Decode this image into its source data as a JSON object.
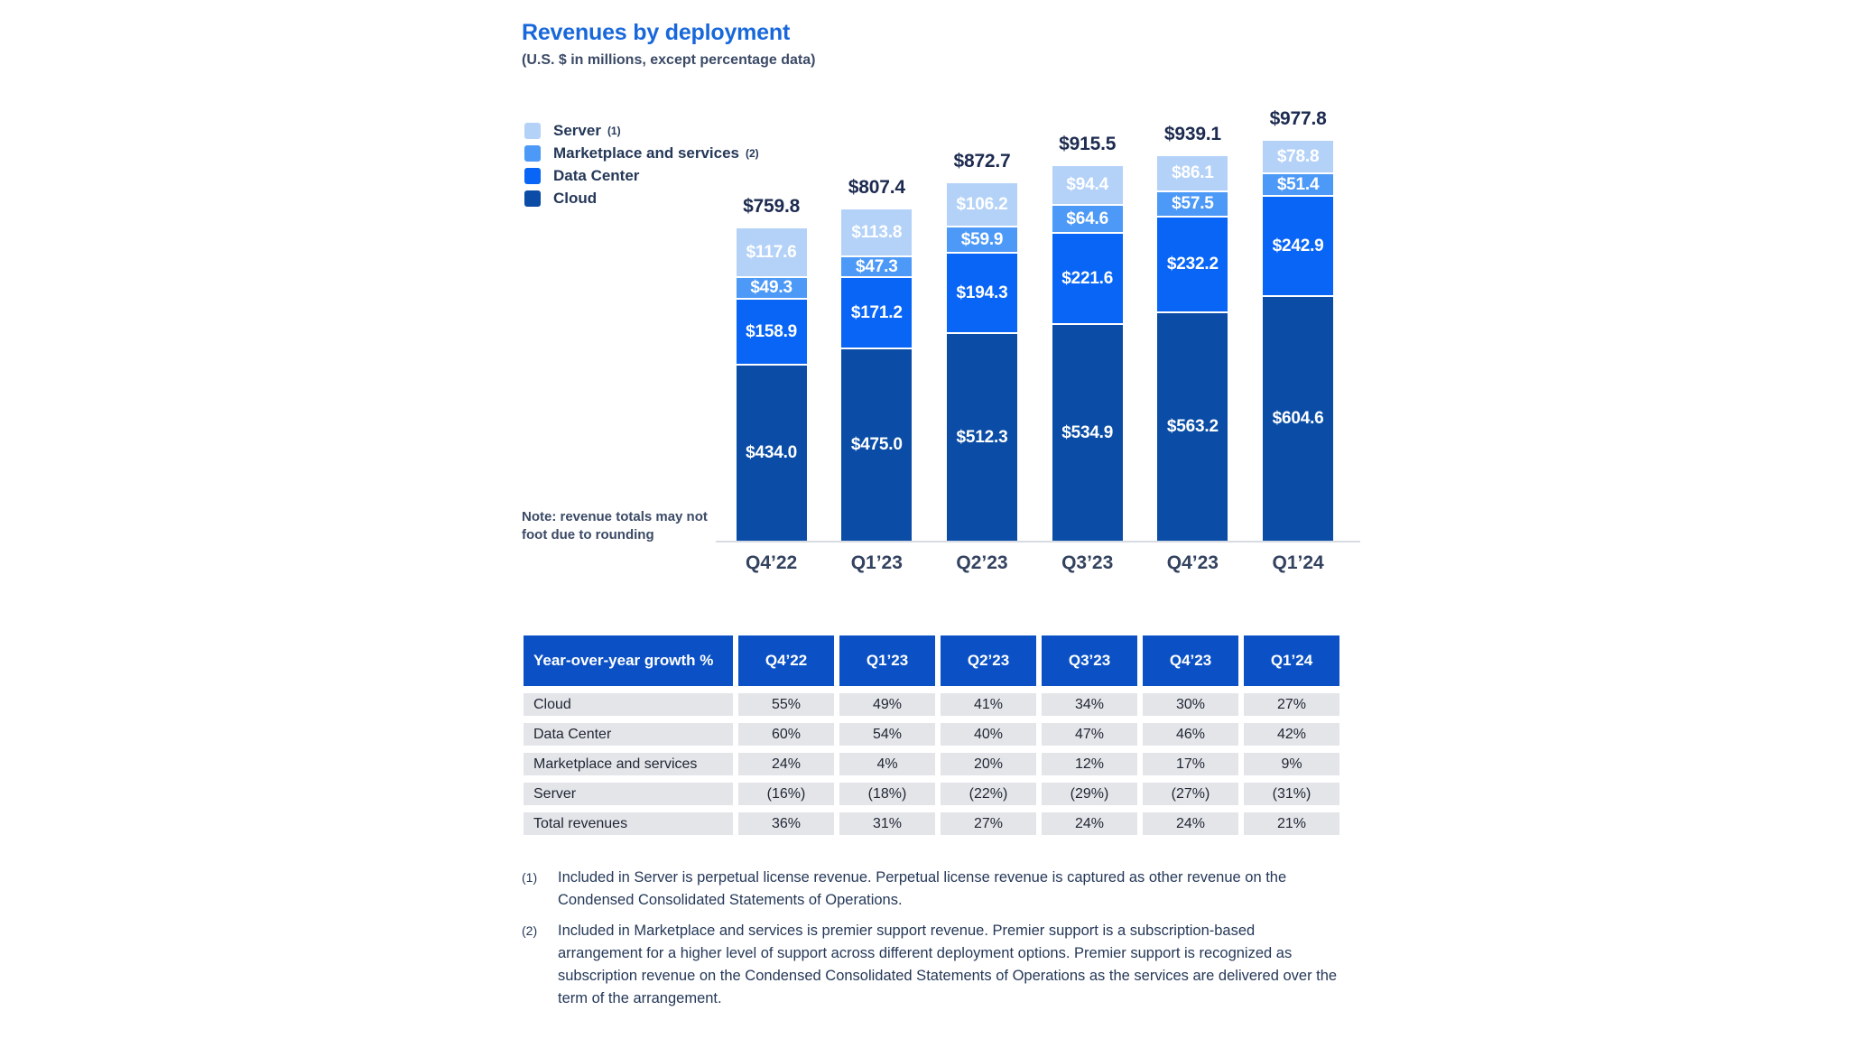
{
  "header": {
    "title": "Revenues by deployment",
    "subtitle": "(U.S. $ in millions, except percentage data)"
  },
  "colors": {
    "title_accent": "#1868DB",
    "server": "#B4D2F8",
    "marketplace": "#4D99F7",
    "data_center": "#0865F6",
    "cloud": "#0B4DA6",
    "table_header": "#0B51C5",
    "table_row_bg": "#E4E5E9",
    "axis_line": "#D8DBE1"
  },
  "legend": [
    {
      "label": "Server",
      "ref": "(1)",
      "color": "#B4D2F8"
    },
    {
      "label": "Marketplace and services",
      "ref": "(2)",
      "color": "#4D99F7"
    },
    {
      "label": "Data Center",
      "ref": "",
      "color": "#0865F6"
    },
    {
      "label": "Cloud",
      "ref": "",
      "color": "#0B4DA6"
    }
  ],
  "chart_data": {
    "type": "bar",
    "stacked": true,
    "title": "Revenues by deployment",
    "subtitle": "(U.S. $ in millions, except percentage data)",
    "unit_prefix": "$",
    "categories": [
      "Q4’22",
      "Q1’23",
      "Q2’23",
      "Q3’23",
      "Q4’23",
      "Q1’24"
    ],
    "series": [
      {
        "name": "Cloud",
        "color": "#0B4DA6",
        "values": [
          434.0,
          475.0,
          512.3,
          534.9,
          563.2,
          604.6
        ]
      },
      {
        "name": "Data Center",
        "color": "#0865F6",
        "values": [
          158.9,
          171.2,
          194.3,
          221.6,
          232.2,
          242.9
        ]
      },
      {
        "name": "Marketplace and services",
        "color": "#4D99F7",
        "values": [
          49.3,
          47.3,
          59.9,
          64.6,
          57.5,
          51.4
        ]
      },
      {
        "name": "Server",
        "color": "#B4D2F8",
        "values": [
          117.6,
          113.8,
          106.2,
          94.4,
          86.1,
          78.8
        ]
      }
    ],
    "totals": [
      759.8,
      807.4,
      872.7,
      915.5,
      939.1,
      977.8
    ],
    "note": "Note: revenue totals may not foot due to rounding",
    "legend_position": "top-left",
    "grid": false
  },
  "growth_table": {
    "header": [
      "Year-over-year growth %",
      "Q4’22",
      "Q1’23",
      "Q2’23",
      "Q3’23",
      "Q4’23",
      "Q1’24"
    ],
    "rows": [
      {
        "label": "Cloud",
        "values": [
          "55%",
          "49%",
          "41%",
          "34%",
          "30%",
          "27%"
        ]
      },
      {
        "label": "Data Center",
        "values": [
          "60%",
          "54%",
          "40%",
          "47%",
          "46%",
          "42%"
        ]
      },
      {
        "label": "Marketplace and services",
        "values": [
          "24%",
          "4%",
          "20%",
          "12%",
          "17%",
          "9%"
        ]
      },
      {
        "label": "Server",
        "values": [
          "(16%)",
          "(18%)",
          "(22%)",
          "(29%)",
          "(27%)",
          "(31%)"
        ]
      },
      {
        "label": "Total revenues",
        "values": [
          "36%",
          "31%",
          "27%",
          "24%",
          "24%",
          "21%"
        ]
      }
    ]
  },
  "footnotes": [
    {
      "marker": "(1)",
      "text": "Included in Server is perpetual license revenue. Perpetual license revenue is captured as other revenue on the Condensed Consolidated Statements of Operations."
    },
    {
      "marker": "(2)",
      "text": "Included in Marketplace and services is premier support revenue. Premier support is a subscription-based arrangement for a higher level of support across different deployment options. Premier support is recognized as subscription revenue on the Condensed Consolidated Statements of Operations as the services are delivered over the term of the arrangement."
    }
  ]
}
